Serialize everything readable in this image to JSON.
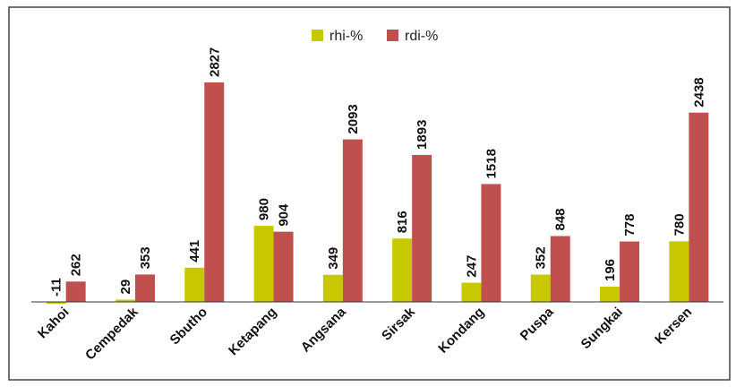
{
  "chart_data": {
    "type": "bar",
    "categories": [
      "Kahoi",
      "Cempedak",
      "Sbutho",
      "Ketapang",
      "Angsana",
      "Sirsak",
      "Kondang",
      "Puspa",
      "Sungkai",
      "Kersen"
    ],
    "series": [
      {
        "name": "rhi-%",
        "color": "#c8c800",
        "values": [
          -11,
          29,
          441,
          980,
          349,
          816,
          247,
          352,
          196,
          780
        ],
        "labels": [
          "-11",
          "29",
          "441",
          "980",
          "349",
          "816",
          "247",
          "352",
          "196",
          "780"
        ]
      },
      {
        "name": "rdi-%",
        "color": "#c0504d",
        "values": [
          262,
          353,
          2827,
          904,
          2093,
          1893,
          1518,
          848,
          778,
          2438
        ],
        "labels": [
          "262",
          "353",
          "2827",
          "904",
          "2093",
          "1893",
          "1518",
          "848",
          "778",
          "2438"
        ]
      }
    ],
    "legend_position": "top-center",
    "grid": false,
    "ylim": [
      -40,
      3100
    ]
  }
}
